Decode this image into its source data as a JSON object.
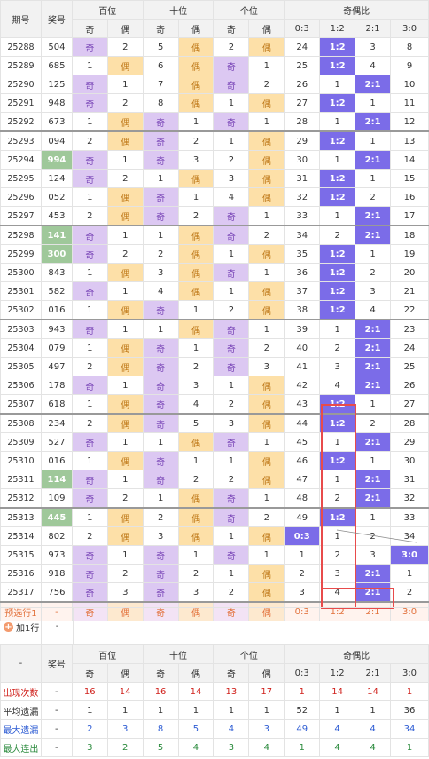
{
  "header": {
    "period_label": "期号",
    "prize_label": "奖号",
    "groups": [
      "百位",
      "十位",
      "个位",
      "奇偶比"
    ],
    "odd": "奇",
    "even": "偶",
    "ratios": [
      "0:3",
      "1:2",
      "2:1",
      "3:0"
    ]
  },
  "rows": [
    {
      "p": "25288",
      "n": "504",
      "c": [
        "奇",
        "2",
        "5",
        "偶",
        "2",
        "偶",
        "24",
        "1:2",
        "3",
        "8"
      ]
    },
    {
      "p": "25289",
      "n": "685",
      "c": [
        "1",
        "偶",
        "6",
        "偶",
        "奇",
        "1",
        "25",
        "1:2",
        "4",
        "9"
      ]
    },
    {
      "p": "25290",
      "n": "125",
      "c": [
        "奇",
        "1",
        "7",
        "偶",
        "奇",
        "2",
        "26",
        "1",
        "2:1",
        "10"
      ]
    },
    {
      "p": "25291",
      "n": "948",
      "c": [
        "奇",
        "2",
        "8",
        "偶",
        "1",
        "偶",
        "27",
        "1:2",
        "1",
        "11"
      ]
    },
    {
      "p": "25292",
      "n": "673",
      "c": [
        "1",
        "偶",
        "奇",
        "1",
        "奇",
        "1",
        "28",
        "1",
        "2:1",
        "12"
      ]
    },
    {
      "p": "25293",
      "n": "094",
      "c": [
        "2",
        "偶",
        "奇",
        "2",
        "1",
        "偶",
        "29",
        "1:2",
        "1",
        "13"
      ]
    },
    {
      "p": "25294",
      "n": "994",
      "c": [
        "奇",
        "1",
        "奇",
        "3",
        "2",
        "偶",
        "30",
        "1",
        "2:1",
        "14"
      ]
    },
    {
      "p": "25295",
      "n": "124",
      "c": [
        "奇",
        "2",
        "1",
        "偶",
        "3",
        "偶",
        "31",
        "1:2",
        "1",
        "15"
      ]
    },
    {
      "p": "25296",
      "n": "052",
      "c": [
        "1",
        "偶",
        "奇",
        "1",
        "4",
        "偶",
        "32",
        "1:2",
        "2",
        "16"
      ]
    },
    {
      "p": "25297",
      "n": "453",
      "c": [
        "2",
        "偶",
        "奇",
        "2",
        "奇",
        "1",
        "33",
        "1",
        "2:1",
        "17"
      ]
    },
    {
      "p": "25298",
      "n": "141",
      "c": [
        "奇",
        "1",
        "1",
        "偶",
        "奇",
        "2",
        "34",
        "2",
        "2:1",
        "18"
      ]
    },
    {
      "p": "25299",
      "n": "300",
      "c": [
        "奇",
        "2",
        "2",
        "偶",
        "1",
        "偶",
        "35",
        "1:2",
        "1",
        "19"
      ]
    },
    {
      "p": "25300",
      "n": "843",
      "c": [
        "1",
        "偶",
        "3",
        "偶",
        "奇",
        "1",
        "36",
        "1:2",
        "2",
        "20"
      ]
    },
    {
      "p": "25301",
      "n": "582",
      "c": [
        "奇",
        "1",
        "4",
        "偶",
        "1",
        "偶",
        "37",
        "1:2",
        "3",
        "21"
      ]
    },
    {
      "p": "25302",
      "n": "016",
      "c": [
        "1",
        "偶",
        "奇",
        "1",
        "2",
        "偶",
        "38",
        "1:2",
        "4",
        "22"
      ]
    },
    {
      "p": "25303",
      "n": "943",
      "c": [
        "奇",
        "1",
        "1",
        "偶",
        "奇",
        "1",
        "39",
        "1",
        "2:1",
        "23"
      ]
    },
    {
      "p": "25304",
      "n": "079",
      "c": [
        "1",
        "偶",
        "奇",
        "1",
        "奇",
        "2",
        "40",
        "2",
        "2:1",
        "24"
      ]
    },
    {
      "p": "25305",
      "n": "497",
      "c": [
        "2",
        "偶",
        "奇",
        "2",
        "奇",
        "3",
        "41",
        "3",
        "2:1",
        "25"
      ]
    },
    {
      "p": "25306",
      "n": "178",
      "c": [
        "奇",
        "1",
        "奇",
        "3",
        "1",
        "偶",
        "42",
        "4",
        "2:1",
        "26"
      ]
    },
    {
      "p": "25307",
      "n": "618",
      "c": [
        "1",
        "偶",
        "奇",
        "4",
        "2",
        "偶",
        "43",
        "1:2",
        "1",
        "27"
      ]
    },
    {
      "p": "25308",
      "n": "234",
      "c": [
        "2",
        "偶",
        "奇",
        "5",
        "3",
        "偶",
        "44",
        "1:2",
        "2",
        "28"
      ]
    },
    {
      "p": "25309",
      "n": "527",
      "c": [
        "奇",
        "1",
        "1",
        "偶",
        "奇",
        "1",
        "45",
        "1",
        "2:1",
        "29"
      ]
    },
    {
      "p": "25310",
      "n": "016",
      "c": [
        "1",
        "偶",
        "奇",
        "1",
        "1",
        "偶",
        "46",
        "1:2",
        "1",
        "30"
      ]
    },
    {
      "p": "25311",
      "n": "114",
      "c": [
        "奇",
        "1",
        "奇",
        "2",
        "2",
        "偶",
        "47",
        "1",
        "2:1",
        "31"
      ]
    },
    {
      "p": "25312",
      "n": "109",
      "c": [
        "奇",
        "2",
        "1",
        "偶",
        "奇",
        "1",
        "48",
        "2",
        "2:1",
        "32"
      ]
    },
    {
      "p": "25313",
      "n": "445",
      "c": [
        "1",
        "偶",
        "2",
        "偶",
        "奇",
        "2",
        "49",
        "1:2",
        "1",
        "33"
      ]
    },
    {
      "p": "25314",
      "n": "802",
      "c": [
        "2",
        "偶",
        "3",
        "偶",
        "1",
        "偶",
        "0:3",
        "1",
        "2",
        "34"
      ]
    },
    {
      "p": "25315",
      "n": "973",
      "c": [
        "奇",
        "1",
        "奇",
        "1",
        "奇",
        "1",
        "1",
        "2",
        "3",
        "3:0"
      ]
    },
    {
      "p": "25316",
      "n": "918",
      "c": [
        "奇",
        "2",
        "奇",
        "2",
        "1",
        "偶",
        "2",
        "3",
        "2:1",
        "1"
      ]
    },
    {
      "p": "25317",
      "n": "756",
      "c": [
        "奇",
        "3",
        "奇",
        "3",
        "2",
        "偶",
        "3",
        "4",
        "2:1",
        "2"
      ]
    }
  ],
  "preselect": {
    "label": "预选行1",
    "prize": "-",
    "cells": [
      "奇",
      "偶",
      "奇",
      "偶",
      "奇",
      "偶",
      "0:3",
      "1:2",
      "2:1",
      "3:0"
    ]
  },
  "add_row": {
    "label": "加1行",
    "dash": "-"
  },
  "stats": {
    "corner": "-",
    "prize_label": "奖号",
    "rows": [
      {
        "label": "出现次数",
        "prize": "-",
        "values": [
          "16",
          "14",
          "16",
          "14",
          "13",
          "17",
          "1",
          "14",
          "14",
          "1"
        ]
      },
      {
        "label": "平均遗漏",
        "prize": "-",
        "values": [
          "1",
          "1",
          "1",
          "1",
          "1",
          "1",
          "52",
          "1",
          "1",
          "36"
        ]
      },
      {
        "label": "最大遗漏",
        "prize": "-",
        "values": [
          "2",
          "3",
          "8",
          "5",
          "4",
          "3",
          "49",
          "4",
          "4",
          "34"
        ]
      },
      {
        "label": "最大连出",
        "prize": "-",
        "values": [
          "3",
          "2",
          "5",
          "4",
          "3",
          "4",
          "1",
          "4",
          "4",
          "1"
        ]
      }
    ]
  },
  "colors": {
    "odd_bg": "#dcc8f2",
    "even_bg": "#fde0a8",
    "prize_hl": "#9fc89a",
    "ratio_hl": "#7b6ce8",
    "red_box": "#e84b4b",
    "preselect_text": "#e2703a"
  }
}
